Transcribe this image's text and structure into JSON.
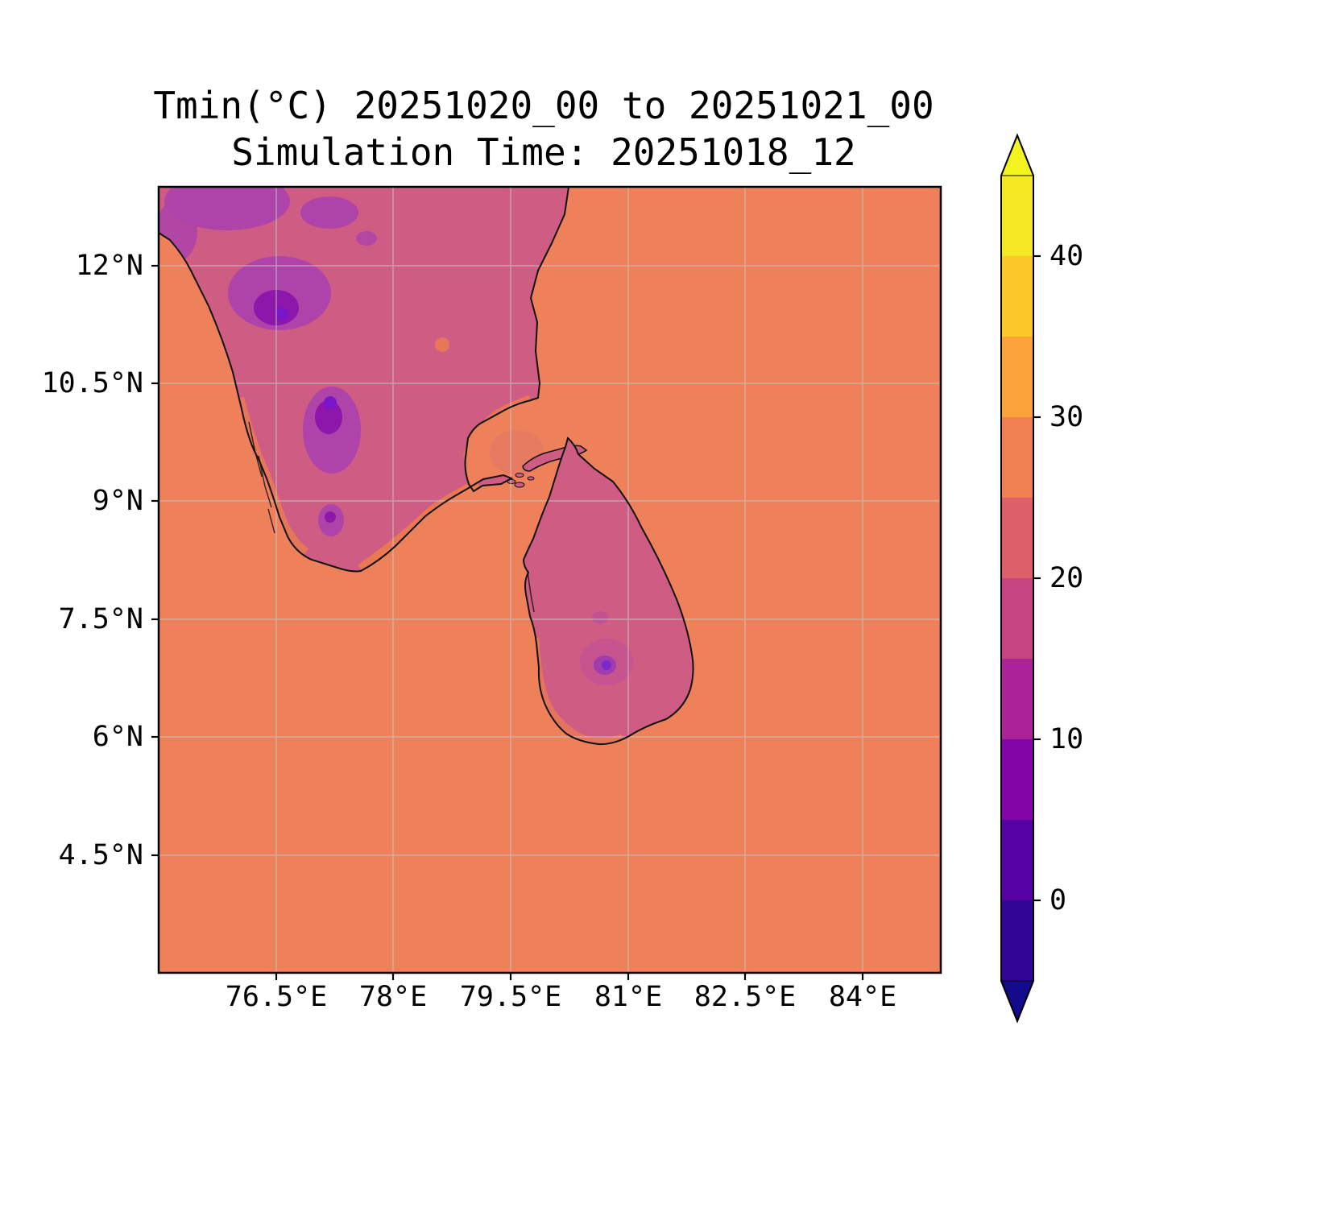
{
  "figure": {
    "background": "#ffffff"
  },
  "colors": {
    "sea": "#ee8159",
    "land": "#cf5c83",
    "landWarm": "#ea7a52",
    "hillOuter": "#ae44a9",
    "hillMid": "#8d17ab",
    "hillDot": "#7b15c9",
    "slHillOuter": "#c04f97",
    "slHillMid": "#a03bb0",
    "slHillDot": "#7b2ac9",
    "palkTint": "#e0766b",
    "coast": "#111111",
    "gridline": "#c9c9c9",
    "cbUnder": "#140a8c",
    "cbOver": "#f2f31f"
  },
  "chart_data": {
    "type": "heatmap",
    "title": "Tmin(°C) 20251020_00 to 20251021_00",
    "subtitle": "Simulation Time: 20251018_12",
    "variable": "Tmin",
    "units": "°C",
    "valid_period": "20251020_00 to 20251021_00",
    "simulation_time": "20251018_12",
    "x_tick_labels": [
      "76.5°E",
      "78°E",
      "79.5°E",
      "81°E",
      "82.5°E",
      "84°E"
    ],
    "y_tick_labels": [
      "12°N",
      "10.5°N",
      "9°N",
      "7.5°N",
      "6°N",
      "4.5°N"
    ],
    "lon_range_e": [
      75,
      85
    ],
    "lat_range_n": [
      3,
      13
    ],
    "grid": true,
    "colorbar": {
      "orientation": "vertical",
      "position": "right",
      "extend": "both",
      "range": [
        -5,
        45
      ],
      "band_width": 5,
      "tick_values": [
        40,
        30,
        20,
        10,
        0
      ],
      "tick_labels": [
        "40",
        "30",
        "20",
        "10",
        "0"
      ],
      "bands": [
        {
          "range": [
            -5,
            0
          ],
          "color": "#320597"
        },
        {
          "range": [
            0,
            5
          ],
          "color": "#5601a4"
        },
        {
          "range": [
            5,
            10
          ],
          "color": "#8305a7"
        },
        {
          "range": [
            10,
            15
          ],
          "color": "#aa2398"
        },
        {
          "range": [
            15,
            20
          ],
          "color": "#c84583"
        },
        {
          "range": [
            20,
            25
          ],
          "color": "#dd5f68"
        },
        {
          "range": [
            25,
            30
          ],
          "color": "#f08052"
        },
        {
          "range": [
            30,
            35
          ],
          "color": "#fba238"
        },
        {
          "range": [
            35,
            40
          ],
          "color": "#fcc827"
        },
        {
          "range": [
            40,
            45
          ],
          "color": "#f3e822"
        }
      ],
      "under_color": "#140a8c",
      "over_color": "#f2f31f"
    },
    "regions": [
      {
        "name": "ocean",
        "approx_tmin_c": "25-30",
        "color": "#ee8159"
      },
      {
        "name": "south-india-interior",
        "approx_tmin_c": "17-23",
        "color": "#cf5c83"
      },
      {
        "name": "western-ghats-highlands",
        "approx_tmin_c": "5-15",
        "color": "#ae44a9"
      },
      {
        "name": "coastal-fringe-south-india",
        "approx_tmin_c": "25-30",
        "color": "#ea7a52"
      },
      {
        "name": "sri-lanka-lowlands",
        "approx_tmin_c": "18-23",
        "color": "#cf5c83"
      },
      {
        "name": "sri-lanka-central-highlands",
        "approx_tmin_c": "8-15",
        "color": "#7b2ac9"
      }
    ]
  }
}
